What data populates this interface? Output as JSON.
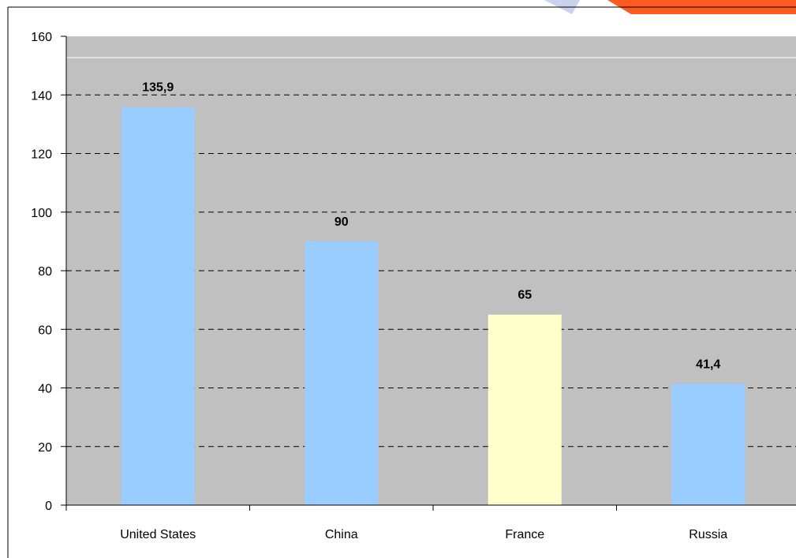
{
  "chart_data": {
    "type": "bar",
    "categories": [
      "United States",
      "China",
      "France",
      "Russia"
    ],
    "values": [
      135.9,
      90,
      65,
      41.4
    ],
    "data_labels": [
      "135,9",
      "90",
      "65",
      "41,4"
    ],
    "bar_colors": [
      "#99ccff",
      "#99ccff",
      "#ffffcc",
      "#99ccff"
    ],
    "ylim": [
      0,
      160
    ],
    "yticks": [
      0,
      20,
      40,
      60,
      80,
      100,
      120,
      140,
      160
    ],
    "grid": true,
    "grid_style": "dashed",
    "plot_background": "#c0c0c0"
  }
}
